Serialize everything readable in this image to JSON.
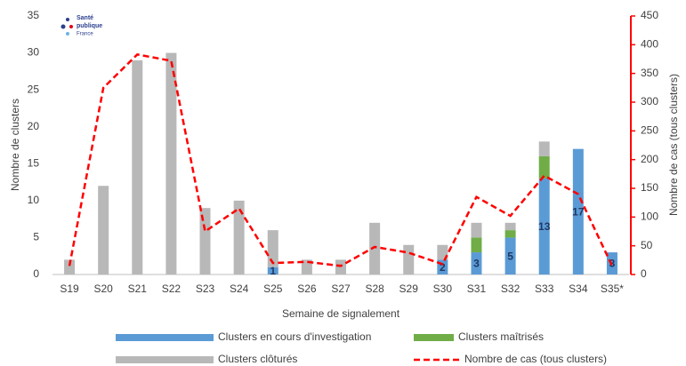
{
  "chart_data": {
    "type": "bar",
    "stacked": true,
    "logo": [
      "Santé",
      "publique",
      "France"
    ],
    "xlabel": "Semaine de signalement",
    "ylabel": "Nombre de clusters",
    "y2label": "Nombre de cas (tous clusters)",
    "categories": [
      "S19",
      "S20",
      "S21",
      "S22",
      "S23",
      "S24",
      "S25",
      "S26",
      "S27",
      "S28",
      "S29",
      "S30",
      "S31",
      "S32",
      "S33",
      "S34",
      "S35*"
    ],
    "series": [
      {
        "name": "Clusters en cours d'investigation",
        "color": "#5b9bd5",
        "values": [
          0,
          0,
          0,
          0,
          0,
          0,
          1,
          0,
          0,
          0,
          0,
          2,
          3,
          5,
          13,
          17,
          3
        ],
        "data_labels": true
      },
      {
        "name": "Clusters maîtrisés",
        "color": "#70ad47",
        "values": [
          0,
          0,
          0,
          0,
          0,
          0,
          0,
          0,
          0,
          0,
          0,
          0,
          2,
          1,
          3,
          0,
          0
        ]
      },
      {
        "name": "Clusters clôturés",
        "color": "#b8b8b8",
        "values": [
          2,
          12,
          29,
          30,
          9,
          10,
          5,
          2,
          2,
          7,
          4,
          2,
          2,
          1,
          2,
          0,
          0
        ]
      },
      {
        "name": "Nombre de cas (tous clusters)",
        "color": "#ff0000",
        "type": "line",
        "dashed": true,
        "axis": "y2",
        "values": [
          15,
          325,
          383,
          372,
          75,
          115,
          20,
          22,
          15,
          48,
          38,
          18,
          135,
          102,
          172,
          140,
          15
        ]
      }
    ],
    "ylim": [
      0,
      35
    ],
    "yticks": [
      0,
      5,
      10,
      15,
      20,
      25,
      30,
      35
    ],
    "y2lim": [
      0,
      450
    ],
    "y2ticks": [
      0,
      50,
      100,
      150,
      200,
      250,
      300,
      350,
      400,
      450
    ],
    "y2_axis_color": "#ff0000"
  }
}
